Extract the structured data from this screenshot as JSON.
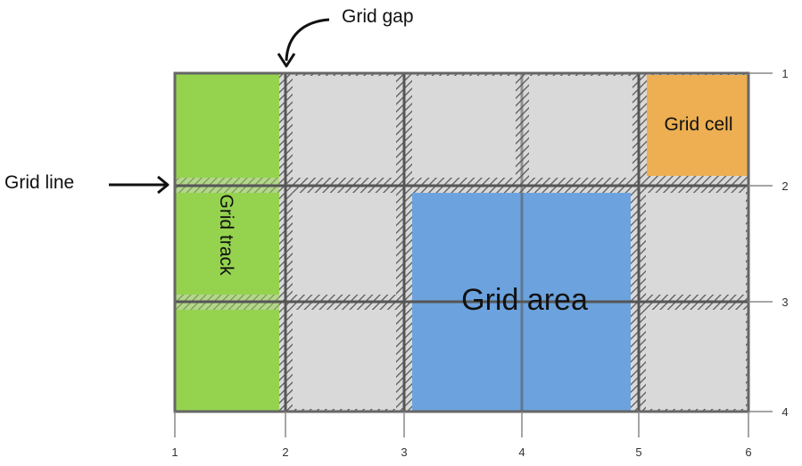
{
  "labels": {
    "grid_gap": "Grid gap",
    "grid_line": "Grid line",
    "grid_track": "Grid track",
    "grid_cell": "Grid cell",
    "grid_area": "Grid area"
  },
  "column_line_numbers": [
    "1",
    "2",
    "3",
    "4",
    "5",
    "6"
  ],
  "row_line_numbers": [
    "1",
    "2",
    "3",
    "4"
  ],
  "colors": {
    "track": "#95d34f",
    "cell": "#edaf51",
    "area": "#6ca3de",
    "empty_cell": "#d9d9d9",
    "grid_line": "#555555",
    "outline": "#666666",
    "tick": "#888888"
  },
  "icons": [
    "curved-arrow-icon",
    "right-arrow-icon"
  ]
}
